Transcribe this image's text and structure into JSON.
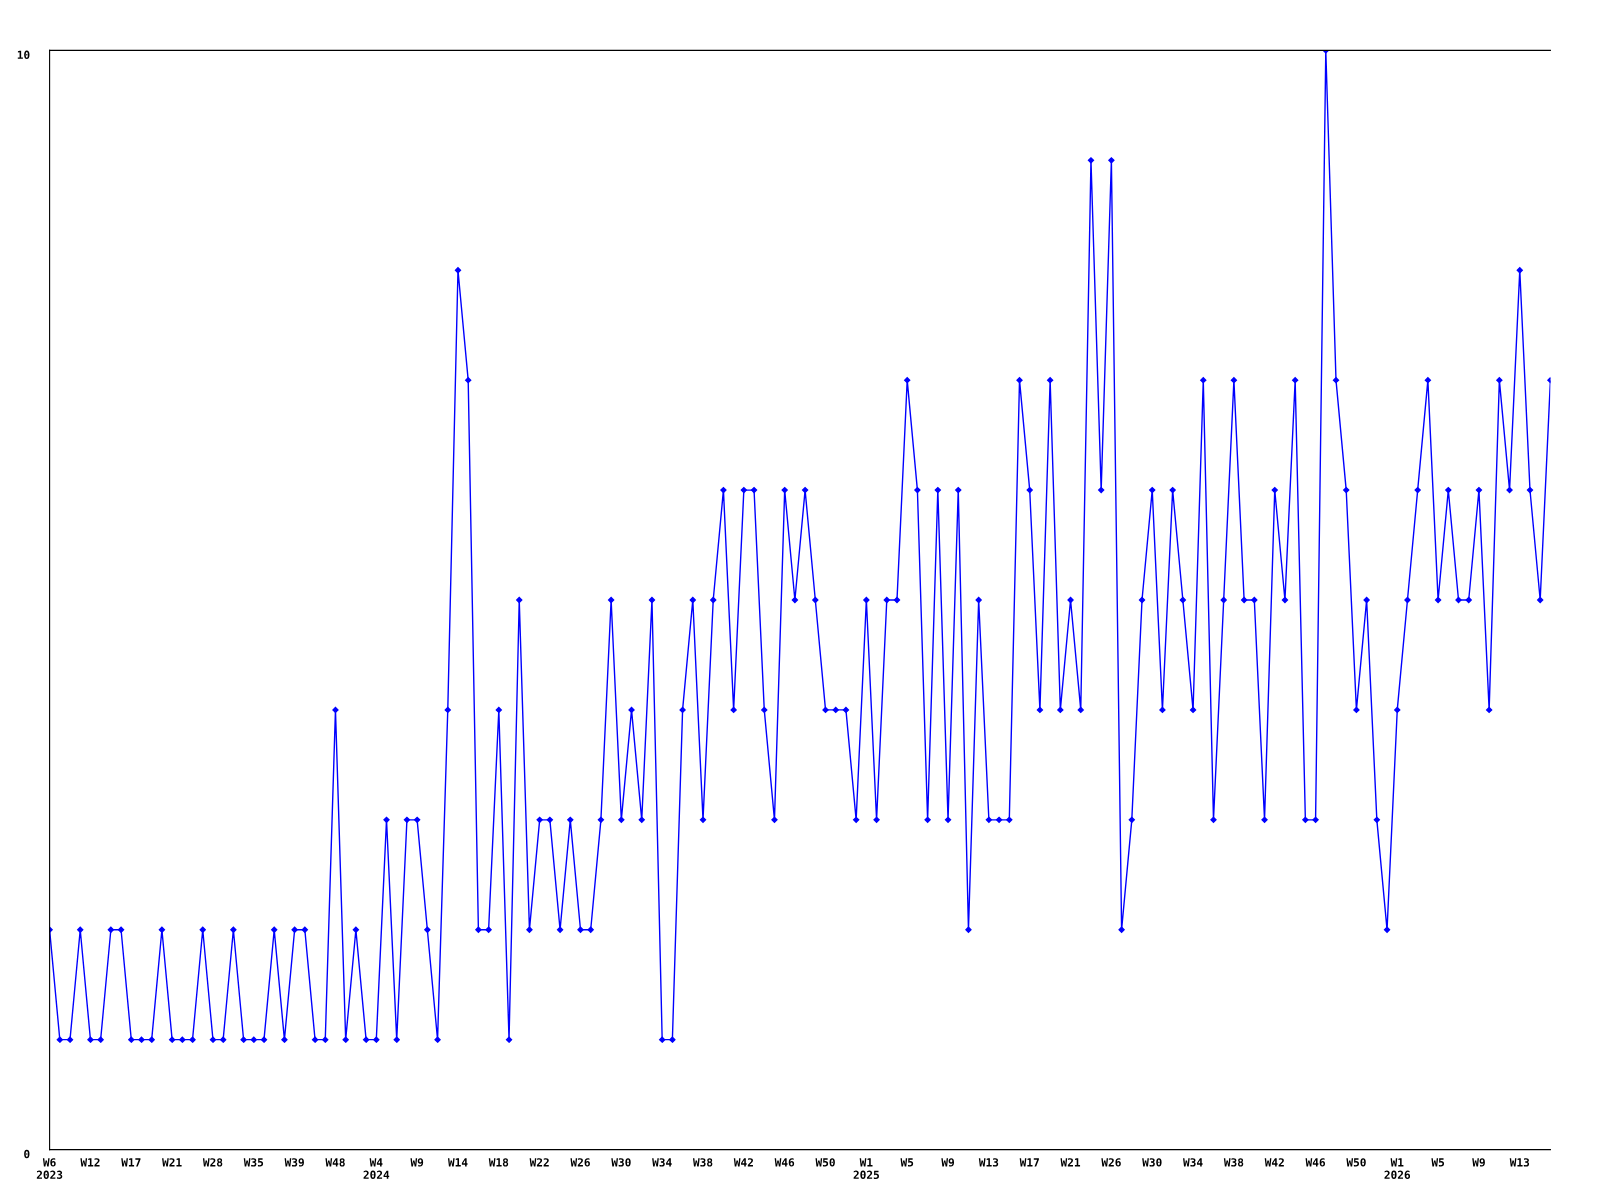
{
  "chart_data": {
    "type": "line",
    "categories": [
      "W6\n2023",
      null,
      null,
      null,
      "W12",
      null,
      null,
      null,
      "W17",
      null,
      null,
      null,
      "W21",
      null,
      null,
      null,
      "W28",
      null,
      null,
      null,
      "W35",
      null,
      null,
      null,
      "W39",
      null,
      null,
      null,
      "W48",
      null,
      null,
      null,
      "W4\n2024",
      null,
      null,
      null,
      "W9",
      null,
      null,
      null,
      "W14",
      null,
      null,
      null,
      "W18",
      null,
      null,
      null,
      "W22",
      null,
      null,
      null,
      "W26",
      null,
      null,
      null,
      "W30",
      null,
      null,
      null,
      "W34",
      null,
      null,
      null,
      "W38",
      null,
      null,
      null,
      "W42",
      null,
      null,
      null,
      "W46",
      null,
      null,
      null,
      "W50",
      null,
      null,
      null,
      "W1\n2025",
      null,
      null,
      null,
      "W5",
      null,
      null,
      null,
      "W9",
      null,
      null,
      null,
      "W13",
      null,
      null,
      null,
      "W17",
      null,
      null,
      null,
      "W21",
      null,
      null,
      null,
      "W26",
      null,
      null,
      null,
      "W30",
      null,
      null,
      null,
      "W34",
      null,
      null,
      null,
      "W38",
      null,
      null,
      null,
      "W42",
      null,
      null,
      null,
      "W46",
      null,
      null,
      null,
      "W50",
      null,
      null,
      null,
      "W1\n2026",
      null,
      null,
      null,
      "W5",
      null,
      null,
      null,
      "W9",
      null,
      null,
      null,
      "W13",
      null,
      null,
      null
    ],
    "series": [
      {
        "color": "#0000ff",
        "values": [
          2,
          1,
          1,
          2,
          1,
          1,
          2,
          2,
          1,
          1,
          1,
          2,
          1,
          1,
          1,
          2,
          1,
          1,
          2,
          1,
          1,
          1,
          2,
          1,
          2,
          2,
          1,
          1,
          4,
          1,
          2,
          1,
          1,
          3,
          1,
          3,
          3,
          2,
          1,
          4,
          8,
          7,
          2,
          2,
          4,
          1,
          5,
          2,
          3,
          3,
          2,
          3,
          2,
          2,
          3,
          5,
          3,
          4,
          3,
          5,
          1,
          1,
          4,
          5,
          3,
          5,
          6,
          4,
          6,
          6,
          4,
          3,
          6,
          5,
          6,
          5,
          4,
          4,
          4,
          3,
          5,
          3,
          5,
          5,
          7,
          6,
          3,
          6,
          3,
          6,
          2,
          5,
          3,
          3,
          3,
          7,
          6,
          4,
          7,
          4,
          5,
          4,
          9,
          6,
          9,
          2,
          3,
          5,
          6,
          4,
          6,
          5,
          4,
          7,
          3,
          5,
          7,
          5,
          5,
          3,
          6,
          5,
          7,
          3,
          3,
          10,
          7,
          6,
          4,
          5,
          3,
          2,
          4,
          5,
          6,
          7,
          5,
          6,
          5,
          5,
          6,
          4,
          7,
          6,
          8,
          6,
          5,
          7
        ]
      }
    ],
    "ylim": [
      0,
      10
    ],
    "yticks": [
      0,
      10
    ],
    "grid": false,
    "marker": "diamond",
    "line_style": "solid"
  }
}
